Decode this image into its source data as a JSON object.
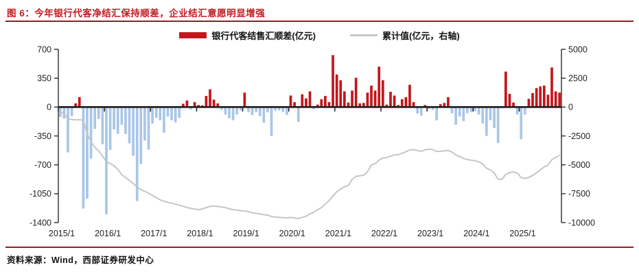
{
  "header": {
    "title": "图 6：今年银行代客净结汇保持顺差，企业结汇意愿明显增强"
  },
  "legend": {
    "items": [
      {
        "label": "银行代客结售汇顺差(亿元)",
        "type": "bar",
        "color": "#c3161c"
      },
      {
        "label": "累计值(亿元，右轴)",
        "type": "line",
        "color": "#c6c6c6"
      }
    ]
  },
  "footer": {
    "source": "资料来源：Wind，西部证券研发中心"
  },
  "chart_data": {
    "type": "bar",
    "title": "",
    "xlabel": "",
    "ylabel_left": "亿元",
    "ylabel_right": "亿元(右轴)",
    "frequency": "monthly",
    "start": "2015/1",
    "end": "2025/11",
    "x_labels": [
      "2015/1",
      "2016/1",
      "2017/1",
      "2018/1",
      "2019/1",
      "2020/1",
      "2021/1",
      "2022/1",
      "2023/1",
      "2024/1",
      "2025/1"
    ],
    "x_label_month_indices": [
      0,
      12,
      24,
      36,
      48,
      60,
      72,
      84,
      96,
      108,
      120
    ],
    "left_axis": {
      "ticks": [
        700,
        350,
        0,
        -350,
        -700,
        -1050,
        -1400
      ],
      "range": [
        -1400,
        700
      ]
    },
    "right_axis": {
      "ticks": [
        5000,
        2500,
        0,
        -2500,
        -5000,
        -7500,
        -10000
      ],
      "range": [
        -10000,
        5000
      ]
    },
    "grid": false,
    "legend_position": "top-center",
    "bar_color_positive": "#c3161c",
    "bar_color_negative": "#a9c6e8",
    "line_color": "#c6c6c6",
    "zero_line_color": "#1c1c1c",
    "axis_color": "#2b2b2b",
    "tick_label_color": "#222222",
    "series": [
      {
        "name": "银行代客结售汇顺差(亿元)",
        "type": "bar",
        "axis": "left",
        "values": [
          -120,
          -140,
          -550,
          -110,
          45,
          120,
          -1230,
          -1110,
          -625,
          -265,
          -145,
          -450,
          -1300,
          -520,
          -270,
          -325,
          -215,
          -325,
          -440,
          -590,
          -1140,
          -690,
          -405,
          -515,
          -200,
          -130,
          -160,
          -310,
          -115,
          -160,
          -185,
          -130,
          40,
          80,
          -30,
          60,
          25,
          20,
          135,
          215,
          90,
          45,
          -35,
          -90,
          -135,
          -160,
          -90,
          -40,
          175,
          -60,
          -95,
          -60,
          -110,
          -190,
          -65,
          -350,
          -45,
          -40,
          -60,
          -95,
          140,
          60,
          -180,
          155,
          105,
          190,
          -25,
          30,
          95,
          135,
          60,
          630,
          395,
          325,
          190,
          55,
          200,
          355,
          45,
          50,
          175,
          260,
          200,
          490,
          325,
          30,
          185,
          140,
          25,
          95,
          120,
          270,
          60,
          -80,
          -105,
          25,
          -20,
          -35,
          -160,
          35,
          50,
          120,
          -75,
          -215,
          -115,
          -170,
          -75,
          -60,
          -50,
          -90,
          -200,
          -350,
          -160,
          -255,
          -435,
          -15,
          430,
          160,
          55,
          -90,
          -390,
          -90,
          100,
          170,
          230,
          250,
          260,
          150,
          480,
          190,
          175
        ]
      },
      {
        "name": "累计值(亿元，右轴)",
        "type": "line",
        "axis": "right",
        "values": [
          -400,
          -600,
          -1000,
          -1080,
          -1100,
          -1090,
          -1150,
          -2300,
          -3000,
          -3480,
          -3780,
          -4250,
          -4700,
          -4900,
          -5080,
          -5400,
          -5850,
          -6100,
          -6350,
          -6620,
          -6900,
          -7150,
          -7300,
          -7450,
          -7650,
          -7850,
          -8030,
          -8150,
          -8250,
          -8330,
          -8400,
          -8500,
          -8580,
          -8700,
          -8770,
          -8830,
          -8880,
          -8820,
          -8700,
          -8600,
          -8570,
          -8600,
          -8650,
          -8700,
          -8800,
          -8880,
          -8920,
          -8960,
          -9000,
          -9050,
          -9150,
          -9200,
          -9250,
          -9320,
          -9350,
          -9480,
          -9520,
          -9550,
          -9570,
          -9600,
          -9550,
          -9600,
          -9650,
          -9550,
          -9450,
          -9250,
          -9100,
          -8900,
          -8700,
          -8400,
          -8100,
          -7700,
          -7330,
          -7100,
          -6900,
          -6800,
          -6250,
          -6000,
          -5950,
          -5900,
          -5600,
          -5030,
          -4900,
          -4600,
          -4400,
          -4380,
          -4250,
          -4150,
          -4130,
          -4000,
          -3870,
          -3700,
          -3680,
          -3760,
          -3830,
          -3700,
          -3640,
          -3690,
          -3850,
          -3830,
          -3800,
          -3750,
          -3900,
          -4150,
          -4280,
          -4450,
          -4540,
          -4600,
          -4650,
          -4740,
          -4940,
          -5290,
          -5450,
          -5700,
          -6250,
          -6260,
          -5830,
          -5670,
          -5620,
          -5710,
          -6100,
          -6190,
          -6090,
          -5920,
          -5690,
          -5440,
          -5180,
          -5030,
          -4550,
          -4360,
          -4190
        ]
      }
    ]
  }
}
